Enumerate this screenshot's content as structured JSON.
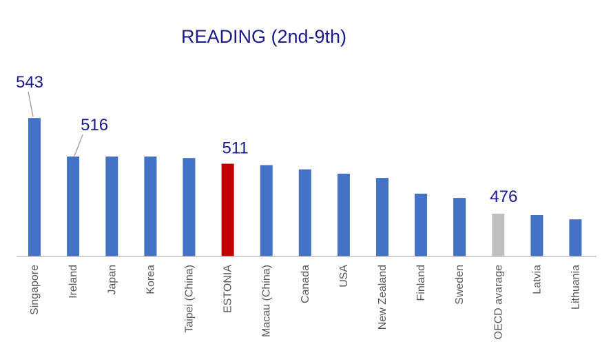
{
  "chart_data": {
    "type": "bar",
    "title": "READING (2nd-9th)",
    "xlabel": "",
    "ylabel": "",
    "grid": false,
    "legend": "none",
    "ylim": [
      446,
      548
    ],
    "categories": [
      "Singapore",
      "Ireland",
      "Japan",
      "Korea",
      "Taipei (China)",
      "ESTONIA",
      "Macau (China)",
      "Canada",
      "USA",
      "New Zealand",
      "Finland",
      "Sweden",
      "OECD avarage",
      "Latvia",
      "Lithuania"
    ],
    "values": [
      543,
      516,
      516,
      516,
      515,
      511,
      510,
      507,
      504,
      501,
      490,
      487,
      476,
      475,
      472
    ],
    "colors": [
      "#4472c4",
      "#4472c4",
      "#4472c4",
      "#4472c4",
      "#4472c4",
      "#c00000",
      "#4472c4",
      "#4472c4",
      "#4472c4",
      "#4472c4",
      "#4472c4",
      "#4472c4",
      "#bfbfbf",
      "#4472c4",
      "#4472c4"
    ],
    "data_labels": [
      {
        "index": 0,
        "text": "543"
      },
      {
        "index": 1,
        "text": "516"
      },
      {
        "index": 5,
        "text": "511"
      },
      {
        "index": 12,
        "text": "476"
      }
    ]
  }
}
